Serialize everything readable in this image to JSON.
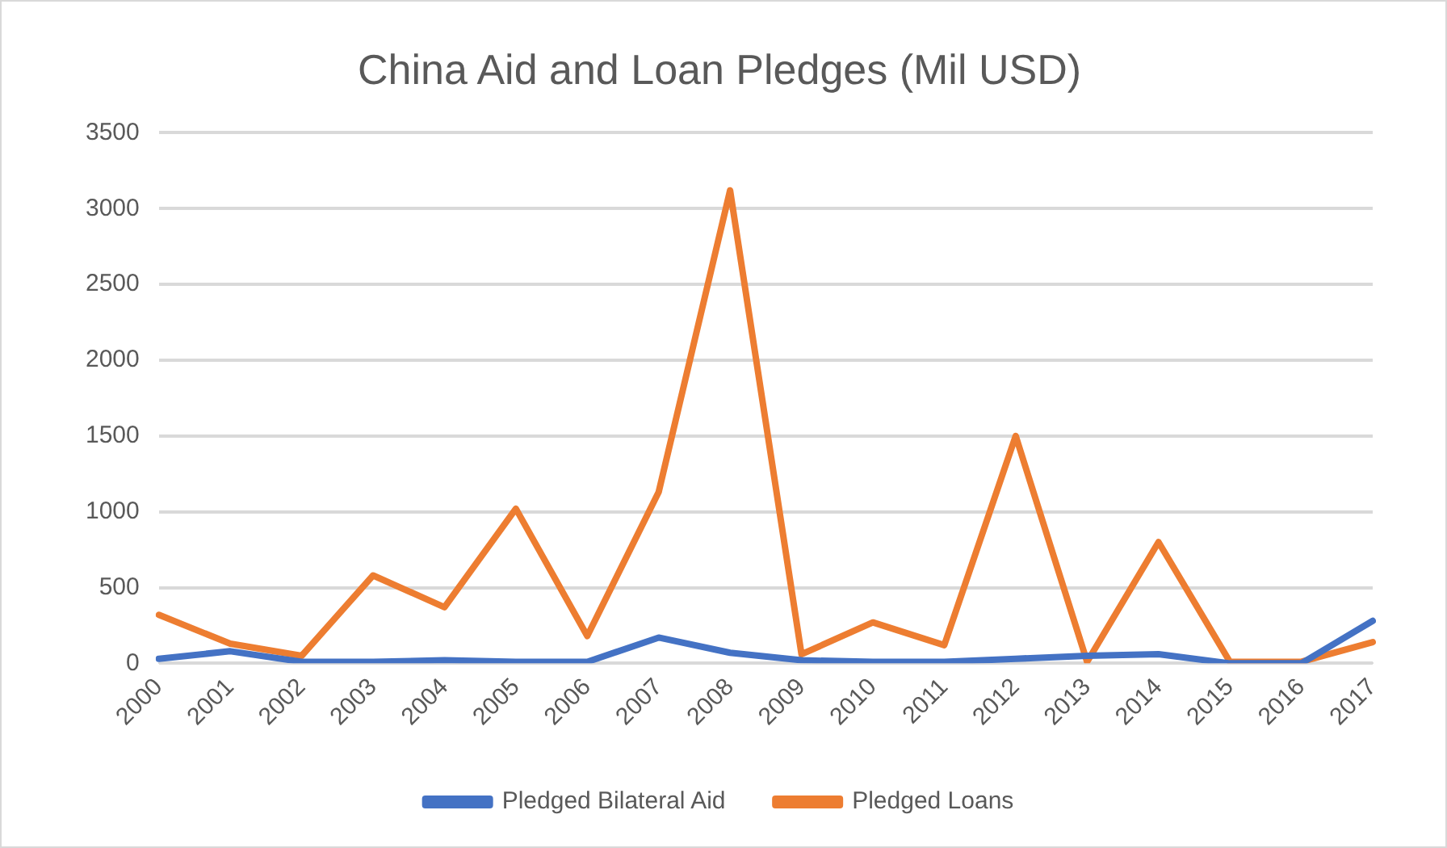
{
  "chart_data": {
    "type": "line",
    "title": "China Aid and Loan Pledges (Mil USD)",
    "categories": [
      "2000",
      "2001",
      "2002",
      "2003",
      "2004",
      "2005",
      "2006",
      "2007",
      "2008",
      "2009",
      "2010",
      "2011",
      "2012",
      "2013",
      "2014",
      "2015",
      "2016",
      "2017"
    ],
    "series": [
      {
        "name": "Pledged Bilateral Aid",
        "color": "#4472c4",
        "values": [
          30,
          80,
          10,
          10,
          20,
          10,
          10,
          170,
          70,
          20,
          10,
          10,
          30,
          50,
          60,
          0,
          0,
          280
        ]
      },
      {
        "name": "Pledged Loans",
        "color": "#ed7d31",
        "values": [
          320,
          130,
          50,
          580,
          370,
          1020,
          180,
          1130,
          3120,
          60,
          270,
          120,
          1500,
          10,
          800,
          10,
          10,
          140
        ]
      }
    ],
    "ylim": [
      0,
      3500
    ],
    "yticks": [
      0,
      500,
      1000,
      1500,
      2000,
      2500,
      3000,
      3500
    ],
    "grid": "y",
    "legend": "bottom",
    "marker": "none",
    "line_style": "solid"
  }
}
